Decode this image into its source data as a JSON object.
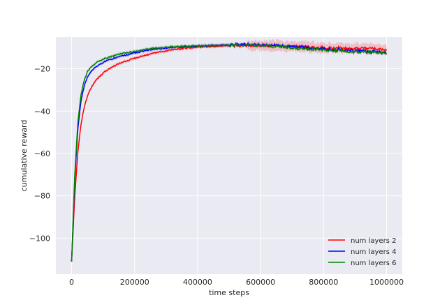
{
  "chart_data": {
    "type": "line",
    "title": "",
    "xlabel": "time steps",
    "ylabel": "cumulative reward",
    "xlim": [
      -50000,
      1050000
    ],
    "ylim": [
      -117,
      -5
    ],
    "xticks": [
      0,
      200000,
      400000,
      600000,
      800000,
      1000000
    ],
    "xtick_labels": [
      "0",
      "200000",
      "400000",
      "600000",
      "800000",
      "1000000"
    ],
    "yticks": [
      -100,
      -80,
      -60,
      -40,
      -20
    ],
    "ytick_labels": [
      "−100",
      "−80",
      "−60",
      "−40",
      "−20"
    ],
    "grid": true,
    "background": "#eaeaf2",
    "legend_position": "lower-right",
    "series": [
      {
        "name": "num layers 2",
        "color": "#ff0000",
        "x": [
          0,
          10000,
          20000,
          30000,
          40000,
          50000,
          60000,
          70000,
          80000,
          100000,
          120000,
          150000,
          200000,
          250000,
          300000,
          350000,
          400000,
          450000,
          500000,
          550000,
          600000,
          650000,
          700000,
          750000,
          800000,
          850000,
          900000,
          950000,
          1000000
        ],
        "y": [
          -111,
          -80,
          -59,
          -46,
          -38,
          -33,
          -29.5,
          -27,
          -25,
          -22,
          -20,
          -17.5,
          -15,
          -13,
          -11.5,
          -10.5,
          -9.8,
          -9.4,
          -9.2,
          -9,
          -9,
          -9.3,
          -9.5,
          -9.7,
          -10,
          -10.2,
          -10.4,
          -10.5,
          -10.8
        ],
        "band": 0.8,
        "noisy_band_from": 560000,
        "noisy_band": 2.5
      },
      {
        "name": "num layers 4",
        "color": "#0000ff",
        "x": [
          0,
          10000,
          20000,
          30000,
          40000,
          50000,
          60000,
          70000,
          80000,
          100000,
          120000,
          150000,
          200000,
          250000,
          300000,
          350000,
          400000,
          450000,
          500000,
          550000,
          600000,
          650000,
          700000,
          750000,
          800000,
          850000,
          900000,
          950000,
          1000000
        ],
        "y": [
          -111,
          -72,
          -48,
          -35,
          -28,
          -24,
          -21.5,
          -20,
          -18.8,
          -17,
          -15.8,
          -14.3,
          -12.5,
          -11,
          -10.2,
          -9.7,
          -9.3,
          -9,
          -8.7,
          -8.5,
          -8.7,
          -9,
          -9.5,
          -10,
          -10.5,
          -11,
          -11.5,
          -12,
          -12.2
        ],
        "band": 0.8
      },
      {
        "name": "num layers 6",
        "color": "#008000",
        "x": [
          0,
          10000,
          20000,
          30000,
          40000,
          50000,
          60000,
          70000,
          80000,
          100000,
          120000,
          150000,
          200000,
          250000,
          300000,
          350000,
          400000,
          450000,
          500000,
          550000,
          600000,
          650000,
          700000,
          750000,
          800000,
          850000,
          900000,
          950000,
          1000000
        ],
        "y": [
          -111,
          -70,
          -45,
          -32,
          -25.5,
          -21.5,
          -19.5,
          -18,
          -17,
          -15.5,
          -14.5,
          -13.2,
          -11.8,
          -10.5,
          -9.8,
          -9.4,
          -9.2,
          -9,
          -8.8,
          -8.7,
          -9,
          -9.4,
          -10,
          -10.6,
          -11,
          -11.5,
          -12,
          -12.2,
          -12.5
        ],
        "band": 0.8
      }
    ]
  }
}
